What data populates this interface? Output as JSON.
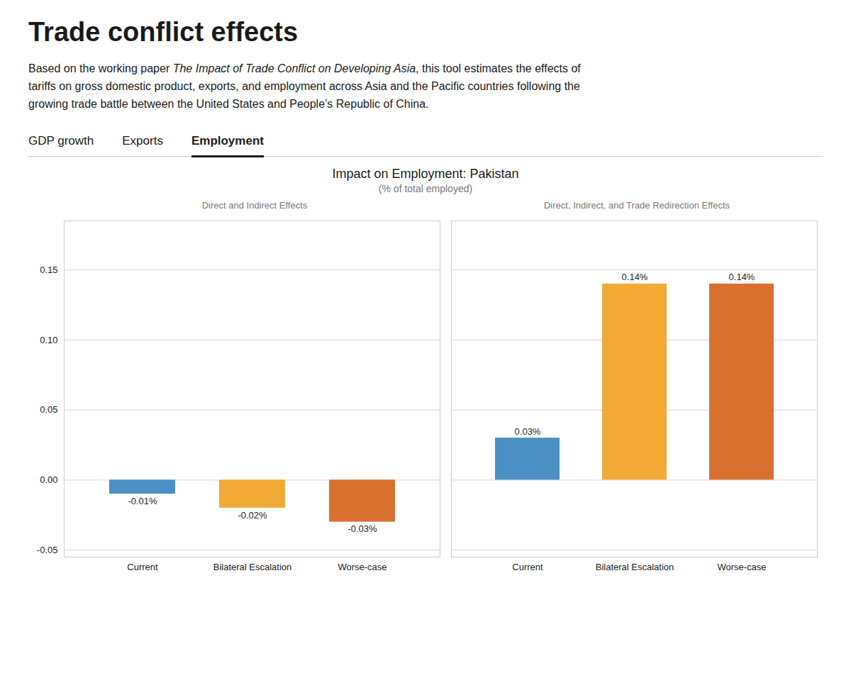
{
  "title": "Trade conflict effects",
  "description": [
    "Based on the working paper The Impact of Trade Conflict on Developing Asia, this tool estimates the effects of",
    "tariffs on gross domestic product, exports, and employment across Asia and the Pacific countries following the",
    "growing trade battle between the United States and People’s Republic of China."
  ],
  "description_link": "The Impact of Trade Conflict on Developing Asia",
  "tabs": [
    "GDP growth",
    "Exports",
    "Employment"
  ],
  "active_tab": "Employment",
  "chart_title": "Impact on Employment: Pakistan",
  "chart_subtitle": "(% of total employed)",
  "chart_data": [
    {
      "type": "bar",
      "title": "Direct and Indirect Effects",
      "categories": [
        "Current",
        "Bilateral Escalation",
        "Worse-case"
      ],
      "values": [
        -0.01,
        -0.02,
        -0.03
      ],
      "value_labels": [
        "-0.01%",
        "-0.02%",
        "-0.03%"
      ],
      "colors": [
        "#4a90c4",
        "#f0aa35",
        "#d97030"
      ],
      "ylim": [
        -0.055,
        0.185
      ],
      "yticks": [
        {
          "value": -0.05,
          "label": "-0.05"
        },
        {
          "value": 0.0,
          "label": "0.00"
        },
        {
          "value": 0.05,
          "label": "0.05"
        },
        {
          "value": 0.1,
          "label": "0.10"
        },
        {
          "value": 0.15,
          "label": "0.15"
        }
      ],
      "grid": true,
      "data_labels": true
    },
    {
      "type": "bar",
      "title": "Direct, Indirect, and Trade Redirection Effects",
      "categories": [
        "Current",
        "Bilateral Escalation",
        "Worse-case"
      ],
      "values": [
        0.03,
        0.14,
        0.14
      ],
      "value_labels": [
        "0.03%",
        "0.14%",
        "0.14%"
      ],
      "colors": [
        "#4a90c4",
        "#f0aa35",
        "#d97030"
      ],
      "ylim": [
        -0.055,
        0.185
      ],
      "yticks": [
        {
          "value": -0.05,
          "label": "-0.05"
        },
        {
          "value": 0.0,
          "label": "0.00"
        },
        {
          "value": 0.05,
          "label": "0.05"
        },
        {
          "value": 0.1,
          "label": "0.10"
        },
        {
          "value": 0.15,
          "label": "0.15"
        }
      ],
      "grid": true,
      "data_labels": true,
      "tick_labels": "x"
    }
  ]
}
